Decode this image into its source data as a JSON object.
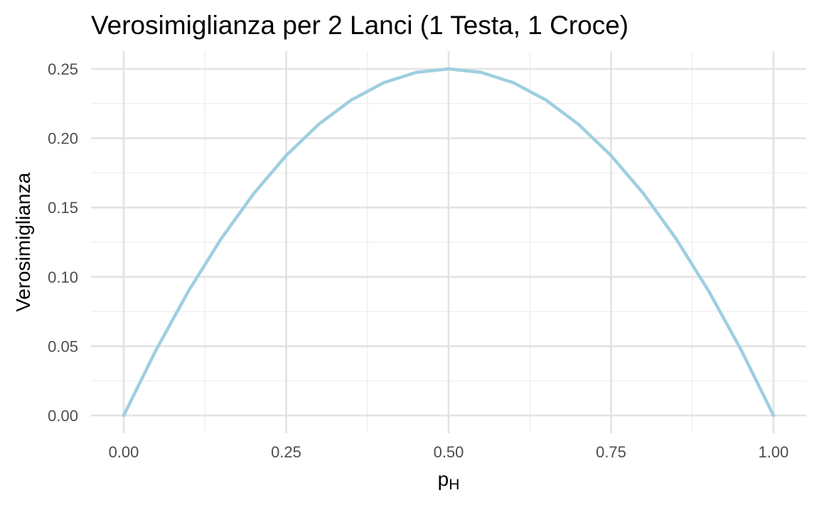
{
  "chart_data": {
    "type": "line",
    "title": "Verosimiglianza per 2 Lanci (1 Testa, 1 Croce)",
    "xlabel_main": "p",
    "xlabel_sub": "H",
    "ylabel": "Verosimiglianza",
    "xlim": [
      0,
      1
    ],
    "ylim": [
      0,
      0.25
    ],
    "x_ticks": [
      "0.00",
      "0.25",
      "0.50",
      "0.75",
      "1.00"
    ],
    "y_ticks": [
      "0.00",
      "0.05",
      "0.10",
      "0.15",
      "0.20",
      "0.25"
    ],
    "grid": true,
    "series": [
      {
        "color": "#9ecfe0",
        "x": [
          0,
          0.05,
          0.1,
          0.15,
          0.2,
          0.25,
          0.3,
          0.35,
          0.4,
          0.45,
          0.5,
          0.55,
          0.6,
          0.65,
          0.7,
          0.75,
          0.8,
          0.85,
          0.9,
          0.95,
          1
        ],
        "y": [
          0,
          0.0475,
          0.09,
          0.1275,
          0.16,
          0.1875,
          0.21,
          0.2275,
          0.24,
          0.2475,
          0.25,
          0.2475,
          0.24,
          0.2275,
          0.21,
          0.1875,
          0.16,
          0.1275,
          0.09,
          0.0475,
          0
        ]
      }
    ]
  }
}
